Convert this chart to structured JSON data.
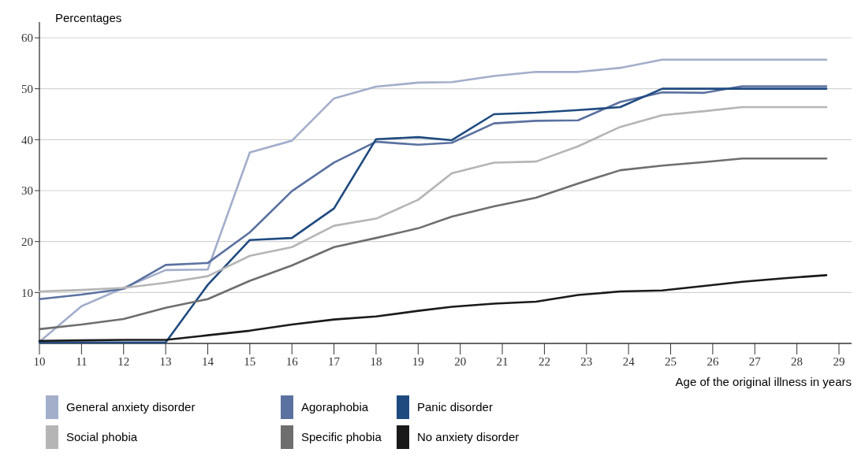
{
  "chart_data": {
    "type": "line",
    "ylabel": "Percentages",
    "xlabel": "Age of the original illness in years",
    "x": [
      10,
      11,
      12,
      13,
      14,
      15,
      16,
      17,
      18,
      19,
      19.8,
      20.8,
      21.8,
      22.8,
      23.8,
      24.8,
      25.8,
      26.7,
      27.7,
      28.7
    ],
    "xlim": [
      10,
      29.3
    ],
    "xticks": [
      10,
      11,
      12,
      13,
      14,
      15,
      16,
      17,
      18,
      19,
      20,
      21,
      22,
      23,
      24,
      25,
      26,
      27,
      28,
      29
    ],
    "ylim": [
      0,
      60
    ],
    "yticks": [
      10,
      20,
      30,
      40,
      50,
      60
    ],
    "grid": "y",
    "legend": "bottom",
    "line_style": "solid",
    "marker": "none",
    "series": [
      {
        "name": "General anxiety disorder",
        "color": "#a3aecb",
        "values": [
          0.3,
          7.3,
          10.9,
          14.4,
          14.5,
          37.5,
          39.8,
          48.1,
          50.4,
          51.2,
          51.3,
          52.5,
          53.3,
          53.3,
          54.1,
          55.7,
          55.7,
          55.7,
          55.7,
          55.7
        ]
      },
      {
        "name": "Agoraphobia",
        "color": "#5b71a0",
        "values": [
          8.7,
          9.6,
          10.7,
          15.4,
          15.8,
          21.8,
          29.9,
          35.5,
          39.6,
          39,
          39.4,
          43.2,
          43.7,
          43.8,
          47.4,
          49.3,
          49.2,
          50.5,
          50.5,
          50.5
        ]
      },
      {
        "name": "Panic disorder",
        "color": "#1f4a80",
        "values": [
          0.2,
          0.2,
          0.2,
          0.2,
          11.5,
          20.3,
          20.7,
          26.5,
          40.1,
          40.5,
          39.9,
          45,
          45.3,
          45.8,
          46.4,
          50,
          50,
          50,
          50,
          50
        ]
      },
      {
        "name": "Social phobia",
        "color": "#b5b5b5",
        "values": [
          10.2,
          10.5,
          10.9,
          11.9,
          13.2,
          17.2,
          18.9,
          23.1,
          24.5,
          28.2,
          33.4,
          35.5,
          35.7,
          38.7,
          42.5,
          44.8,
          45.6,
          46.4,
          46.4,
          46.4
        ]
      },
      {
        "name": "Specific phobia",
        "color": "#6e6e6e",
        "values": [
          2.8,
          3.7,
          4.8,
          7,
          8.7,
          12.3,
          15.3,
          18.9,
          20.7,
          22.6,
          24.9,
          26.9,
          28.6,
          31.4,
          34,
          34.9,
          35.6,
          36.3,
          36.3,
          36.3
        ]
      },
      {
        "name": "No anxiety disorder",
        "color": "#1a1a1a",
        "values": [
          0.5,
          0.6,
          0.7,
          0.7,
          1.6,
          2.5,
          3.7,
          4.7,
          5.3,
          6.4,
          7.2,
          7.8,
          8.2,
          9.5,
          10.2,
          10.4,
          11.3,
          12.1,
          12.8,
          13.4
        ]
      }
    ]
  }
}
